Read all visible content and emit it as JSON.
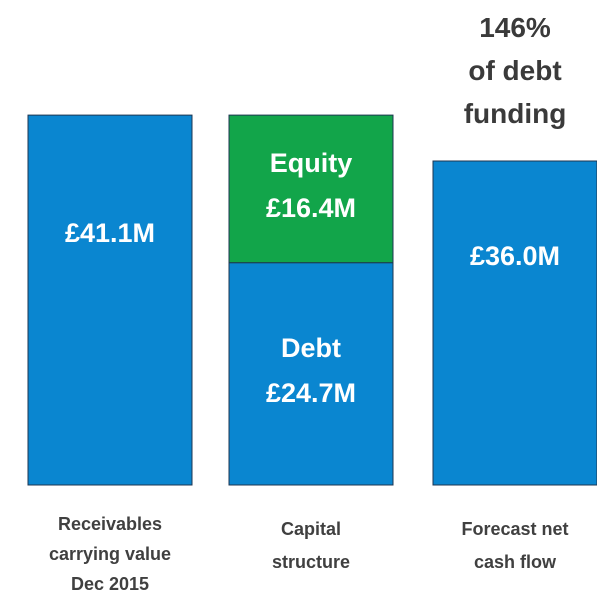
{
  "chart_data": {
    "type": "bar",
    "categories": [
      "Receivables\ncarrying value\nDec 2015",
      "Capital\nstructure",
      "Forecast net\ncash flow"
    ],
    "values": [
      41.1,
      null,
      36.0
    ],
    "value_labels": [
      "£41.1M",
      null,
      "£36.0M"
    ],
    "color": "#0a86d0",
    "series": [
      {
        "name": "Debt",
        "color": "#0a86d0",
        "values": [
          null,
          24.7,
          null
        ],
        "value_labels": [
          null,
          "£24.7M",
          null
        ]
      },
      {
        "name": "Equity",
        "color": "#12a54a",
        "values": [
          null,
          16.4,
          null
        ],
        "value_labels": [
          null,
          "£16.4M",
          null
        ]
      }
    ],
    "annotation": "146%\nof debt\nfunding"
  }
}
